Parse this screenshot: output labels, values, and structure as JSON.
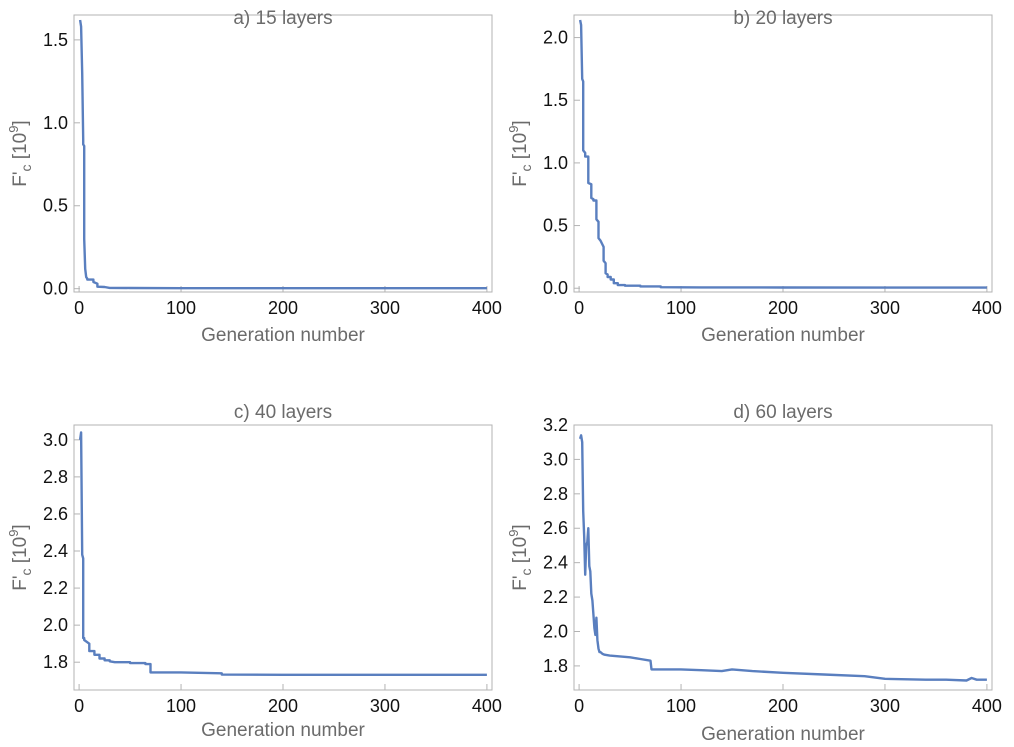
{
  "figure": {
    "accent": "#5a7fbf",
    "frame_color": "#b3b3b3"
  },
  "chart_data": [
    {
      "type": "line",
      "title": "a) 15 layers",
      "xlabel": "Generation number",
      "ylabel": "F'c [10^9]",
      "xlim": [
        -5,
        405
      ],
      "ylim": [
        -0.02,
        1.65
      ],
      "xticks": [
        0,
        100,
        200,
        300,
        400
      ],
      "xtick_labels": [
        "0",
        "100",
        "200",
        "300",
        "400"
      ],
      "yticks": [
        0.0,
        0.5,
        1.0,
        1.5
      ],
      "ytick_labels": [
        "0.0",
        "0.5",
        "1.0",
        "1.5"
      ],
      "grid": false,
      "x": [
        1,
        2,
        3,
        4,
        4,
        5,
        5,
        6,
        7,
        8,
        8,
        14,
        14,
        18,
        18,
        25,
        30,
        50,
        100,
        200,
        300,
        400
      ],
      "y": [
        1.62,
        1.58,
        1.3,
        0.9,
        0.87,
        0.86,
        0.3,
        0.12,
        0.07,
        0.06,
        0.055,
        0.055,
        0.04,
        0.03,
        0.012,
        0.01,
        0.005,
        0.004,
        0.003,
        0.003,
        0.003,
        0.003
      ]
    },
    {
      "type": "line",
      "title": "b) 20 layers",
      "xlabel": "Generation number",
      "ylabel": "F'c [10^9]",
      "xlim": [
        -5,
        405
      ],
      "ylim": [
        -0.03,
        2.18
      ],
      "xticks": [
        0,
        100,
        200,
        300,
        400
      ],
      "xtick_labels": [
        "0",
        "100",
        "200",
        "300",
        "400"
      ],
      "yticks": [
        0.0,
        0.5,
        1.0,
        1.5,
        2.0
      ],
      "ytick_labels": [
        "0.0",
        "0.5",
        "1.0",
        "1.5",
        "2.0"
      ],
      "grid": false,
      "x": [
        1,
        2,
        3,
        4,
        4,
        6,
        6,
        9,
        9,
        12,
        12,
        14,
        14,
        17,
        17,
        19,
        19,
        21,
        21,
        24,
        24,
        26,
        26,
        28,
        28,
        31,
        31,
        34,
        34,
        38,
        38,
        45,
        45,
        60,
        60,
        80,
        80,
        120,
        200,
        300,
        400
      ],
      "y": [
        2.14,
        2.1,
        1.67,
        1.65,
        1.1,
        1.08,
        1.05,
        1.05,
        0.84,
        0.83,
        0.72,
        0.71,
        0.7,
        0.7,
        0.55,
        0.53,
        0.4,
        0.38,
        0.38,
        0.33,
        0.22,
        0.2,
        0.12,
        0.11,
        0.09,
        0.09,
        0.07,
        0.07,
        0.04,
        0.04,
        0.025,
        0.025,
        0.02,
        0.02,
        0.015,
        0.015,
        0.008,
        0.007,
        0.006,
        0.005,
        0.005
      ]
    },
    {
      "type": "line",
      "title": "c) 40 layers",
      "xlabel": "Generation number",
      "ylabel": "F'c [10^9]",
      "xlim": [
        -5,
        405
      ],
      "ylim": [
        1.65,
        3.08
      ],
      "xticks": [
        0,
        100,
        200,
        300,
        400
      ],
      "xtick_labels": [
        "0",
        "100",
        "200",
        "300",
        "400"
      ],
      "yticks": [
        1.8,
        2.0,
        2.2,
        2.4,
        2.6,
        2.8,
        3.0
      ],
      "ytick_labels": [
        "1.8",
        "2.0",
        "2.2",
        "2.4",
        "2.6",
        "2.8",
        "3.0"
      ],
      "grid": false,
      "x": [
        1,
        2,
        3,
        4,
        4,
        5,
        5,
        10,
        10,
        15,
        15,
        20,
        20,
        25,
        25,
        30,
        30,
        35,
        35,
        50,
        50,
        65,
        65,
        70,
        70,
        100,
        140,
        140,
        200,
        300,
        400
      ],
      "y": [
        3.0,
        3.04,
        2.38,
        2.36,
        1.93,
        1.93,
        1.92,
        1.9,
        1.86,
        1.86,
        1.84,
        1.84,
        1.82,
        1.82,
        1.81,
        1.81,
        1.805,
        1.8,
        1.8,
        1.8,
        1.795,
        1.795,
        1.79,
        1.79,
        1.745,
        1.745,
        1.74,
        1.733,
        1.732,
        1.732,
        1.732
      ]
    },
    {
      "type": "line",
      "title": "d) 60 layers",
      "xlabel": "Generation number",
      "ylabel": "F'c [10^9]",
      "xlim": [
        -5,
        405
      ],
      "ylim": [
        1.66,
        3.2
      ],
      "xticks": [
        0,
        100,
        200,
        300,
        400
      ],
      "xtick_labels": [
        "0",
        "100",
        "200",
        "300",
        "400"
      ],
      "yticks": [
        1.8,
        2.0,
        2.2,
        2.4,
        2.6,
        2.8,
        3.0,
        3.2
      ],
      "ytick_labels": [
        "1.8",
        "2.0",
        "2.2",
        "2.4",
        "2.6",
        "2.8",
        "3.0",
        "3.2"
      ],
      "grid": false,
      "x": [
        1,
        2,
        3,
        4,
        5,
        6,
        7,
        8,
        9,
        10,
        11,
        12,
        13,
        14,
        15,
        16,
        17,
        18,
        19,
        20,
        21,
        22,
        23,
        25,
        30,
        40,
        50,
        60,
        70,
        71,
        80,
        100,
        120,
        140,
        150,
        170,
        200,
        240,
        280,
        300,
        340,
        360,
        380,
        385,
        390,
        400
      ],
      "y": [
        3.12,
        3.14,
        3.1,
        2.7,
        2.55,
        2.33,
        2.5,
        2.52,
        2.6,
        2.38,
        2.35,
        2.22,
        2.18,
        2.1,
        2.02,
        1.98,
        2.08,
        1.95,
        1.9,
        1.88,
        1.88,
        1.875,
        1.87,
        1.865,
        1.86,
        1.855,
        1.85,
        1.84,
        1.83,
        1.78,
        1.78,
        1.78,
        1.775,
        1.77,
        1.78,
        1.77,
        1.76,
        1.75,
        1.74,
        1.725,
        1.72,
        1.72,
        1.715,
        1.73,
        1.72,
        1.72
      ]
    }
  ]
}
